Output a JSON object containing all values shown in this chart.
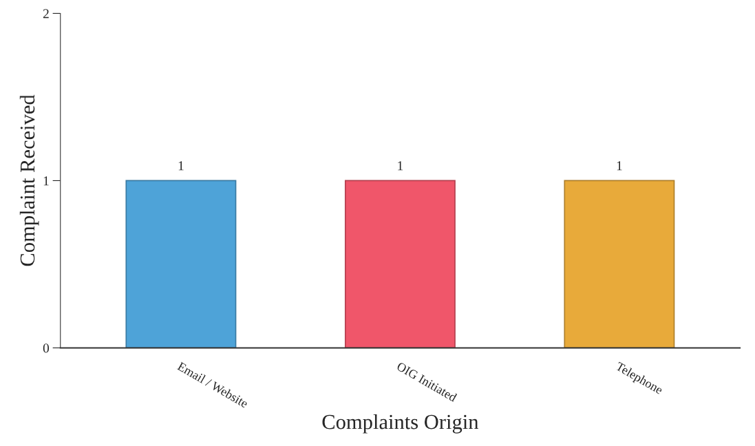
{
  "chart_data": {
    "type": "bar",
    "xlabel": "Complaints Origin",
    "ylabel": "Complaint Received",
    "categories": [
      "Email / Website",
      "OIG Initiated",
      "Telephone"
    ],
    "values": [
      1,
      1,
      1
    ],
    "colors": [
      "#4ea3d8",
      "#f0566a",
      "#e8aa3a"
    ],
    "ylim": [
      0,
      2
    ],
    "yticks": [
      0,
      1,
      2
    ],
    "grid": false,
    "data_labels": true
  }
}
